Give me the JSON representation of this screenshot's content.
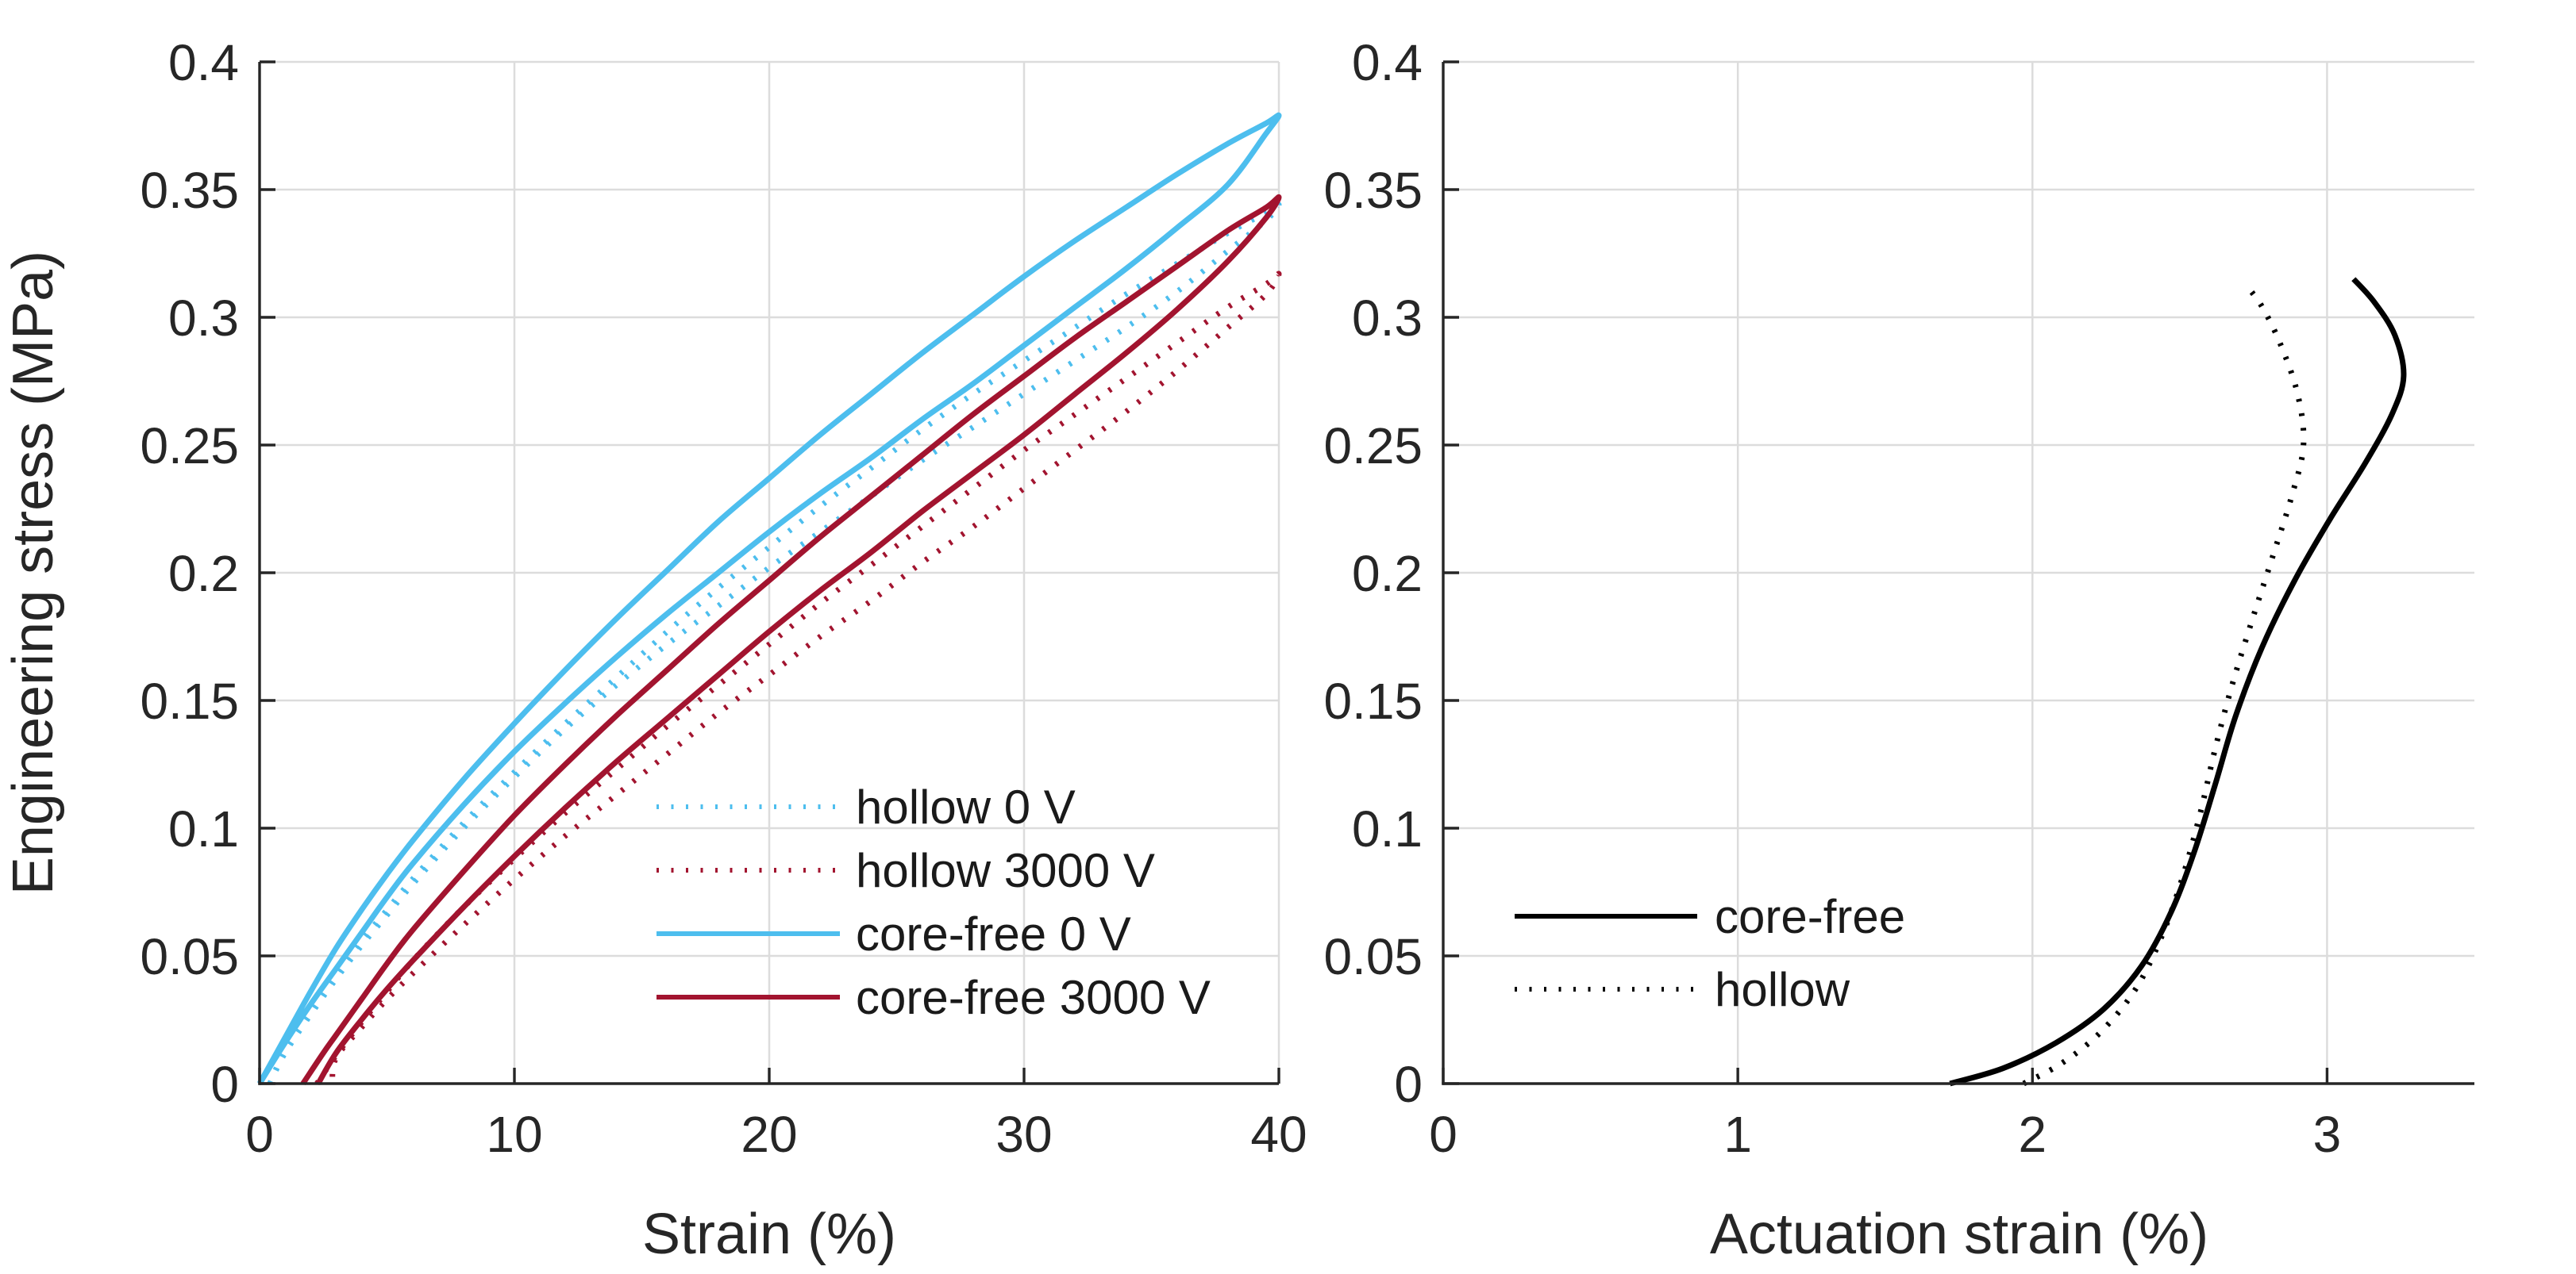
{
  "chart_data": [
    {
      "id": "stress_strain",
      "type": "line",
      "title": "",
      "xlabel": "Strain (%)",
      "ylabel": "Engineering stress (MPa)",
      "xlim": [
        0,
        40
      ],
      "ylim": [
        0,
        0.4
      ],
      "xticks": [
        0,
        10,
        20,
        30,
        40
      ],
      "yticks": [
        0,
        0.05,
        0.1,
        0.15,
        0.2,
        0.25,
        0.3,
        0.35,
        0.4
      ],
      "xtick_labels": [
        "0",
        "10",
        "20",
        "30",
        "40"
      ],
      "ytick_labels": [
        "0",
        "0.05",
        "0.1",
        "0.15",
        "0.2",
        "0.25",
        "0.3",
        "0.35",
        "0.4"
      ],
      "grid": true,
      "legend_position": "inside lower right",
      "legend": [
        {
          "label": "hollow  0 V",
          "style": "dotted",
          "color": "#4DBEEE"
        },
        {
          "label": "hollow 3000 V",
          "style": "dotted",
          "color": "#A2142F"
        },
        {
          "label": "core-free 0 V",
          "style": "solid",
          "color": "#4DBEEE"
        },
        {
          "label": "core-free 3000 V",
          "style": "solid",
          "color": "#A2142F"
        }
      ],
      "series": [
        {
          "name": "hollow  0 V",
          "color": "#4DBEEE",
          "style": "dotted",
          "points": [
            [
              0.4,
              0
            ],
            [
              1,
              0.013
            ],
            [
              2,
              0.028
            ],
            [
              3,
              0.043
            ],
            [
              4,
              0.056
            ],
            [
              5,
              0.068
            ],
            [
              6,
              0.08
            ],
            [
              8,
              0.102
            ],
            [
              10,
              0.122
            ],
            [
              12,
              0.141
            ],
            [
              14,
              0.159
            ],
            [
              16,
              0.177
            ],
            [
              18,
              0.194
            ],
            [
              20,
              0.21
            ],
            [
              22,
              0.226
            ],
            [
              24,
              0.241
            ],
            [
              26,
              0.256
            ],
            [
              28,
              0.27
            ],
            [
              30,
              0.283
            ],
            [
              32,
              0.296
            ],
            [
              34,
              0.309
            ],
            [
              36,
              0.321
            ],
            [
              38,
              0.333
            ],
            [
              39.5,
              0.341
            ],
            [
              40,
              0.344
            ],
            [
              39.5,
              0.338
            ],
            [
              38,
              0.326
            ],
            [
              36,
              0.31
            ],
            [
              34,
              0.296
            ],
            [
              32,
              0.283
            ],
            [
              30,
              0.27
            ],
            [
              28,
              0.257
            ],
            [
              26,
              0.244
            ],
            [
              24,
              0.23
            ],
            [
              22,
              0.216
            ],
            [
              20,
              0.202
            ],
            [
              18,
              0.187
            ],
            [
              16,
              0.172
            ],
            [
              14,
              0.156
            ],
            [
              12,
              0.139
            ],
            [
              10,
              0.12
            ],
            [
              8,
              0.1
            ],
            [
              6,
              0.078
            ],
            [
              5,
              0.066
            ],
            [
              4,
              0.054
            ],
            [
              3,
              0.041
            ],
            [
              2,
              0.027
            ],
            [
              1,
              0.012
            ],
            [
              0.4,
              0
            ]
          ]
        },
        {
          "name": "hollow 3000 V",
          "color": "#A2142F",
          "style": "dotted",
          "points": [
            [
              2.25,
              0
            ],
            [
              3,
              0.011
            ],
            [
              4,
              0.024
            ],
            [
              5,
              0.036
            ],
            [
              6,
              0.048
            ],
            [
              8,
              0.069
            ],
            [
              10,
              0.088
            ],
            [
              12,
              0.106
            ],
            [
              14,
              0.123
            ],
            [
              16,
              0.14
            ],
            [
              18,
              0.156
            ],
            [
              20,
              0.172
            ],
            [
              22,
              0.188
            ],
            [
              24,
              0.203
            ],
            [
              26,
              0.218
            ],
            [
              28,
              0.233
            ],
            [
              30,
              0.248
            ],
            [
              32,
              0.262
            ],
            [
              34,
              0.276
            ],
            [
              36,
              0.29
            ],
            [
              38,
              0.304
            ],
            [
              39.5,
              0.313
            ],
            [
              40,
              0.317
            ],
            [
              39.5,
              0.309
            ],
            [
              38,
              0.296
            ],
            [
              36,
              0.279
            ],
            [
              34,
              0.263
            ],
            [
              32,
              0.248
            ],
            [
              30,
              0.233
            ],
            [
              28,
              0.218
            ],
            [
              26,
              0.204
            ],
            [
              24,
              0.189
            ],
            [
              22,
              0.175
            ],
            [
              20,
              0.16
            ],
            [
              18,
              0.145
            ],
            [
              16,
              0.129
            ],
            [
              14,
              0.113
            ],
            [
              12,
              0.097
            ],
            [
              10,
              0.08
            ],
            [
              8,
              0.062
            ],
            [
              6,
              0.043
            ],
            [
              5,
              0.033
            ],
            [
              4,
              0.022
            ],
            [
              3,
              0.01
            ],
            [
              2.85,
              0
            ]
          ]
        },
        {
          "name": "core-free 0 V",
          "color": "#4DBEEE",
          "style": "solid",
          "points": [
            [
              0,
              0
            ],
            [
              1,
              0.018
            ],
            [
              2,
              0.036
            ],
            [
              3,
              0.053
            ],
            [
              4,
              0.068
            ],
            [
              5,
              0.082
            ],
            [
              6,
              0.095
            ],
            [
              8,
              0.119
            ],
            [
              10,
              0.141
            ],
            [
              12,
              0.162
            ],
            [
              14,
              0.182
            ],
            [
              16,
              0.201
            ],
            [
              18,
              0.22
            ],
            [
              20,
              0.237
            ],
            [
              22,
              0.254
            ],
            [
              24,
              0.27
            ],
            [
              26,
              0.286
            ],
            [
              28,
              0.301
            ],
            [
              30,
              0.316
            ],
            [
              32,
              0.33
            ],
            [
              34,
              0.343
            ],
            [
              36,
              0.356
            ],
            [
              38,
              0.368
            ],
            [
              39.5,
              0.376
            ],
            [
              40,
              0.379
            ],
            [
              39.5,
              0.372
            ],
            [
              38,
              0.352
            ],
            [
              36,
              0.335
            ],
            [
              34,
              0.319
            ],
            [
              32,
              0.304
            ],
            [
              30,
              0.289
            ],
            [
              28,
              0.274
            ],
            [
              26,
              0.26
            ],
            [
              24,
              0.245
            ],
            [
              22,
              0.231
            ],
            [
              20,
              0.216
            ],
            [
              18,
              0.2
            ],
            [
              16,
              0.184
            ],
            [
              14,
              0.167
            ],
            [
              12,
              0.149
            ],
            [
              10,
              0.13
            ],
            [
              8,
              0.109
            ],
            [
              6,
              0.086
            ],
            [
              5,
              0.073
            ],
            [
              4,
              0.059
            ],
            [
              3,
              0.045
            ],
            [
              2,
              0.031
            ],
            [
              1,
              0.016
            ],
            [
              0,
              0
            ]
          ]
        },
        {
          "name": "core-free 3000 V",
          "color": "#A2142F",
          "style": "solid",
          "points": [
            [
              1.7,
              0
            ],
            [
              2.5,
              0.012
            ],
            [
              3,
              0.019
            ],
            [
              4,
              0.033
            ],
            [
              5,
              0.047
            ],
            [
              6,
              0.06
            ],
            [
              8,
              0.083
            ],
            [
              10,
              0.105
            ],
            [
              12,
              0.125
            ],
            [
              14,
              0.144
            ],
            [
              16,
              0.162
            ],
            [
              18,
              0.18
            ],
            [
              20,
              0.197
            ],
            [
              22,
              0.214
            ],
            [
              24,
              0.23
            ],
            [
              26,
              0.246
            ],
            [
              28,
              0.262
            ],
            [
              30,
              0.277
            ],
            [
              32,
              0.292
            ],
            [
              34,
              0.306
            ],
            [
              36,
              0.32
            ],
            [
              38,
              0.334
            ],
            [
              39.5,
              0.343
            ],
            [
              40,
              0.347
            ],
            [
              39.5,
              0.339
            ],
            [
              38,
              0.322
            ],
            [
              36,
              0.303
            ],
            [
              34,
              0.286
            ],
            [
              32,
              0.27
            ],
            [
              30,
              0.254
            ],
            [
              28,
              0.239
            ],
            [
              26,
              0.224
            ],
            [
              24,
              0.208
            ],
            [
              22,
              0.193
            ],
            [
              20,
              0.177
            ],
            [
              18,
              0.16
            ],
            [
              16,
              0.143
            ],
            [
              14,
              0.126
            ],
            [
              12,
              0.108
            ],
            [
              10,
              0.089
            ],
            [
              8,
              0.069
            ],
            [
              6,
              0.048
            ],
            [
              5,
              0.037
            ],
            [
              4,
              0.025
            ],
            [
              3,
              0.012
            ],
            [
              2.3,
              0
            ]
          ]
        }
      ]
    },
    {
      "id": "actuation_strain",
      "type": "line",
      "title": "",
      "xlabel": "Actuation strain (%)",
      "ylabel": "",
      "xlim": [
        0,
        3.5
      ],
      "ylim": [
        0,
        0.4
      ],
      "xticks": [
        0,
        1,
        2,
        3
      ],
      "yticks": [
        0,
        0.05,
        0.1,
        0.15,
        0.2,
        0.25,
        0.3,
        0.35,
        0.4
      ],
      "xtick_labels": [
        "0",
        "1",
        "2",
        "3"
      ],
      "ytick_labels": [
        "0",
        "0.05",
        "0.1",
        "0.15",
        "0.2",
        "0.25",
        "0.3",
        "0.35",
        "0.4"
      ],
      "grid": true,
      "legend_position": "inside center left",
      "legend": [
        {
          "label": "core-free",
          "style": "solid",
          "color": "#000000"
        },
        {
          "label": "hollow",
          "style": "dotted",
          "color": "#000000"
        }
      ],
      "series": [
        {
          "name": "hollow",
          "color": "#000000",
          "style": "dotted",
          "points": [
            [
              1.97,
              0
            ],
            [
              2.1,
              0.008
            ],
            [
              2.23,
              0.02
            ],
            [
              2.35,
              0.037
            ],
            [
              2.44,
              0.058
            ],
            [
              2.51,
              0.081
            ],
            [
              2.57,
              0.106
            ],
            [
              2.62,
              0.131
            ],
            [
              2.68,
              0.157
            ],
            [
              2.75,
              0.183
            ],
            [
              2.82,
              0.208
            ],
            [
              2.88,
              0.23
            ],
            [
              2.92,
              0.25
            ],
            [
              2.9,
              0.27
            ],
            [
              2.84,
              0.29
            ],
            [
              2.78,
              0.304
            ],
            [
              2.73,
              0.312
            ]
          ]
        },
        {
          "name": "core-free",
          "color": "#000000",
          "style": "solid",
          "points": [
            [
              1.72,
              0
            ],
            [
              1.9,
              0.006
            ],
            [
              2.08,
              0.016
            ],
            [
              2.24,
              0.029
            ],
            [
              2.37,
              0.046
            ],
            [
              2.47,
              0.067
            ],
            [
              2.55,
              0.091
            ],
            [
              2.62,
              0.117
            ],
            [
              2.69,
              0.144
            ],
            [
              2.78,
              0.171
            ],
            [
              2.89,
              0.197
            ],
            [
              3.01,
              0.221
            ],
            [
              3.13,
              0.243
            ],
            [
              3.22,
              0.262
            ],
            [
              3.26,
              0.277
            ],
            [
              3.23,
              0.293
            ],
            [
              3.16,
              0.306
            ],
            [
              3.09,
              0.315
            ]
          ]
        }
      ]
    }
  ],
  "style_colors": {
    "cyan": "#4DBEEE",
    "dark_red": "#A2142F",
    "black": "#000000",
    "axis": "#262626",
    "grid": "#dcdcdc",
    "background": "#ffffff"
  }
}
